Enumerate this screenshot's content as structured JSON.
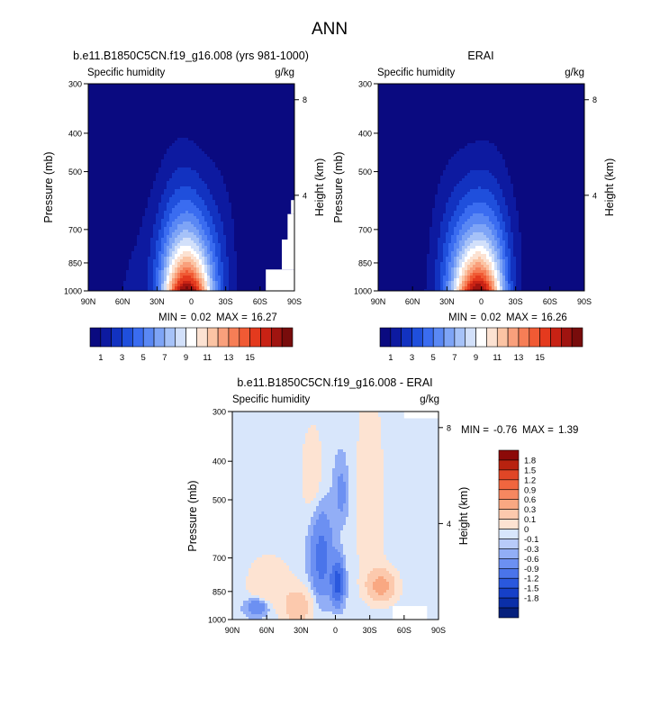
{
  "page_title": "ANN",
  "colors": {
    "abs_scale": [
      "#0a0a80",
      "#0d1aa0",
      "#1232c0",
      "#1f4fdc",
      "#3a6cf0",
      "#5a88f4",
      "#7ea4f6",
      "#a6c2f8",
      "#d2e0fa",
      "#ffffff",
      "#fce2d2",
      "#fbc4a4",
      "#f9a07c",
      "#f67e56",
      "#f05a34",
      "#e43a1e",
      "#c82214",
      "#a01410",
      "#780c0c"
    ],
    "diff_scale": [
      "#06207c",
      "#0b2fa8",
      "#1640c8",
      "#2a58de",
      "#4a74ea",
      "#6c90f2",
      "#92aef6",
      "#b8cbf9",
      "#d8e6fb",
      "#fde3d2",
      "#fcc9ad",
      "#f9a882",
      "#f68760",
      "#f0663f",
      "#e04626",
      "#b8220f",
      "#8c0a08"
    ]
  },
  "chart_data": [
    {
      "id": "model",
      "type": "contour",
      "title": "b.e11.B1850C5CN.f19_g16.008 (yrs 981-1000)",
      "left_label": "Specific humidity",
      "right_label": "g/kg",
      "xlabel": "",
      "ylabel": "Pressure (mb)",
      "ylabel_right": "Height (km)",
      "x_ticks": [
        "90N",
        "60N",
        "30N",
        "0",
        "30S",
        "60S",
        "90S"
      ],
      "x_tick_values": [
        90,
        60,
        30,
        0,
        -30,
        -60,
        -90
      ],
      "y_ticks": [
        "300",
        "400",
        "500",
        "700",
        "850",
        "1000"
      ],
      "y_tick_values": [
        300,
        400,
        500,
        700,
        850,
        1000
      ],
      "height_ticks": [
        "8",
        "4"
      ],
      "height_tick_values": [
        8,
        4
      ],
      "ylim": [
        300,
        1000
      ],
      "xlim": [
        90,
        -90
      ],
      "min": 0.02,
      "max": 16.27,
      "min_label": "MIN =",
      "max_label": "MAX =",
      "min_text": "0.02",
      "max_text": "16.27",
      "colorbar_labels": [
        "1",
        "3",
        "5",
        "7",
        "9",
        "11",
        "13",
        "15"
      ],
      "levels": [
        1,
        2,
        3,
        4,
        5,
        6,
        7,
        8,
        9,
        10,
        11,
        12,
        13,
        14,
        15,
        16,
        17,
        18
      ]
    },
    {
      "id": "obs",
      "type": "contour",
      "title": "ERAI",
      "left_label": "Specific humidity",
      "right_label": "g/kg",
      "xlabel": "",
      "ylabel": "Pressure (mb)",
      "ylabel_right": "Height (km)",
      "x_ticks": [
        "90N",
        "60N",
        "30N",
        "0",
        "30S",
        "60S",
        "90S"
      ],
      "x_tick_values": [
        90,
        60,
        30,
        0,
        -30,
        -60,
        -90
      ],
      "y_ticks": [
        "300",
        "400",
        "500",
        "700",
        "850",
        "1000"
      ],
      "y_tick_values": [
        300,
        400,
        500,
        700,
        850,
        1000
      ],
      "height_ticks": [
        "8",
        "4"
      ],
      "height_tick_values": [
        8,
        4
      ],
      "ylim": [
        300,
        1000
      ],
      "xlim": [
        90,
        -90
      ],
      "min": 0.02,
      "max": 16.26,
      "min_label": "MIN =",
      "max_label": "MAX =",
      "min_text": "0.02",
      "max_text": "16.26",
      "colorbar_labels": [
        "1",
        "3",
        "5",
        "7",
        "9",
        "11",
        "13",
        "15"
      ],
      "levels": [
        1,
        2,
        3,
        4,
        5,
        6,
        7,
        8,
        9,
        10,
        11,
        12,
        13,
        14,
        15,
        16,
        17,
        18
      ]
    },
    {
      "id": "diff",
      "type": "contour",
      "title": "b.e11.B1850C5CN.f19_g16.008 - ERAI",
      "left_label": "Specific humidity",
      "right_label": "g/kg",
      "xlabel": "",
      "ylabel": "Pressure (mb)",
      "ylabel_right": "Height (km)",
      "x_ticks": [
        "90N",
        "60N",
        "30N",
        "0",
        "30S",
        "60S",
        "90S"
      ],
      "x_tick_values": [
        90,
        60,
        30,
        0,
        -30,
        -60,
        -90
      ],
      "y_ticks": [
        "300",
        "400",
        "500",
        "700",
        "850",
        "1000"
      ],
      "y_tick_values": [
        300,
        400,
        500,
        700,
        850,
        1000
      ],
      "height_ticks": [
        "8",
        "4"
      ],
      "height_tick_values": [
        8,
        4
      ],
      "ylim": [
        300,
        1000
      ],
      "xlim": [
        90,
        -90
      ],
      "min": -0.76,
      "max": 1.39,
      "min_label": "MIN =",
      "max_label": "MAX =",
      "min_text": "-0.76",
      "max_text": "1.39",
      "colorbar_labels": [
        "1.8",
        "1.5",
        "1.2",
        "0.9",
        "0.6",
        "0.3",
        "0.1",
        "0",
        "-0.1",
        "-0.3",
        "-0.6",
        "-0.9",
        "-1.2",
        "-1.5",
        "-1.8"
      ],
      "levels": [
        -1.8,
        -1.5,
        -1.2,
        -0.9,
        -0.6,
        -0.3,
        -0.1,
        0,
        0.1,
        0.3,
        0.6,
        0.9,
        1.2,
        1.5,
        1.8
      ]
    }
  ]
}
